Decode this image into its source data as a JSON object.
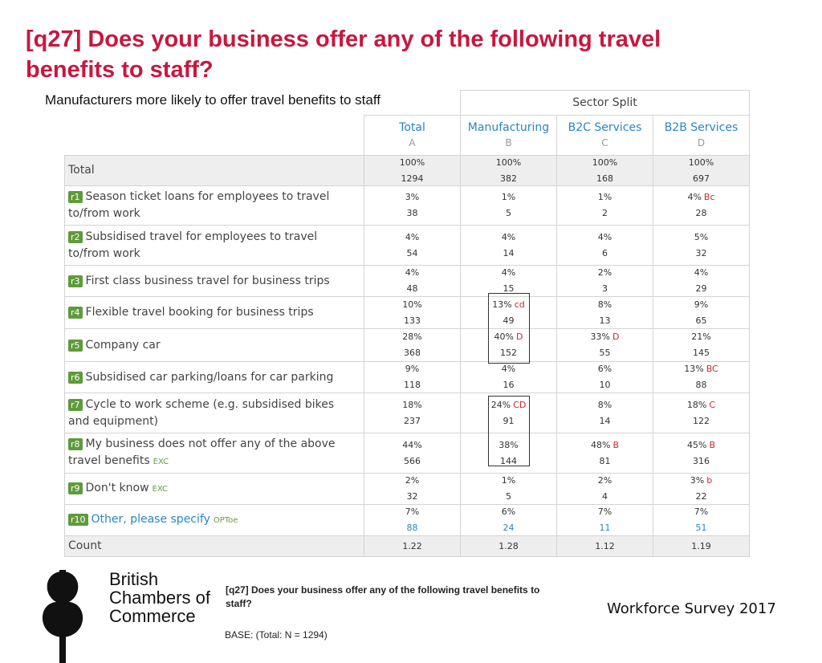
{
  "header": {
    "title": "[q27] Does your business offer any of the following travel benefits to staff?",
    "subtitle": "Manufacturers more likely to offer travel benefits to staff"
  },
  "table": {
    "group_header": "Sector Split",
    "columns": [
      {
        "name": "Total",
        "letter": "A"
      },
      {
        "name": "Manufacturing",
        "letter": "B"
      },
      {
        "name": "B2C Services",
        "letter": "C"
      },
      {
        "name": "B2B Services",
        "letter": "D"
      }
    ],
    "total_row": {
      "label": "Total",
      "cells": [
        {
          "pct": "100%",
          "count": "1294"
        },
        {
          "pct": "100%",
          "count": "382"
        },
        {
          "pct": "100%",
          "count": "168"
        },
        {
          "pct": "100%",
          "count": "697"
        }
      ]
    },
    "rows": [
      {
        "code": "r1",
        "label": "Season ticket loans for employees to travel to/from work",
        "cells": [
          {
            "pct": "3%",
            "count": "38"
          },
          {
            "pct": "1%",
            "count": "5"
          },
          {
            "pct": "1%",
            "count": "2"
          },
          {
            "pct": "4%",
            "sig": "Bc",
            "count": "28"
          }
        ]
      },
      {
        "code": "r2",
        "label": "Subsidised travel for employees to travel to/from work",
        "cells": [
          {
            "pct": "4%",
            "count": "54"
          },
          {
            "pct": "4%",
            "count": "14"
          },
          {
            "pct": "4%",
            "count": "6"
          },
          {
            "pct": "5%",
            "count": "32"
          }
        ]
      },
      {
        "code": "r3",
        "label": "First class business travel for business trips",
        "cells": [
          {
            "pct": "4%",
            "count": "48"
          },
          {
            "pct": "4%",
            "count": "15"
          },
          {
            "pct": "2%",
            "count": "3"
          },
          {
            "pct": "4%",
            "count": "29"
          }
        ]
      },
      {
        "code": "r4",
        "label": "Flexible travel booking for business trips",
        "cells": [
          {
            "pct": "10%",
            "count": "133"
          },
          {
            "pct": "13%",
            "sig": "cd",
            "count": "49"
          },
          {
            "pct": "8%",
            "count": "13"
          },
          {
            "pct": "9%",
            "count": "65"
          }
        ]
      },
      {
        "code": "r5",
        "label": "Company car",
        "cells": [
          {
            "pct": "28%",
            "count": "368"
          },
          {
            "pct": "40%",
            "sig": "D",
            "count": "152"
          },
          {
            "pct": "33%",
            "sig": "D",
            "count": "55"
          },
          {
            "pct": "21%",
            "count": "145"
          }
        ]
      },
      {
        "code": "r6",
        "label": "Subsidised car parking/loans for car parking",
        "cells": [
          {
            "pct": "9%",
            "count": "118"
          },
          {
            "pct": "4%",
            "count": "16"
          },
          {
            "pct": "6%",
            "count": "10"
          },
          {
            "pct": "13%",
            "sig": "BC",
            "count": "88"
          }
        ]
      },
      {
        "code": "r7",
        "label": "Cycle to work scheme (e.g. subsidised bikes and equipment)",
        "cells": [
          {
            "pct": "18%",
            "count": "237"
          },
          {
            "pct": "24%",
            "sig": "CD",
            "count": "91"
          },
          {
            "pct": "8%",
            "count": "14"
          },
          {
            "pct": "18%",
            "sig": "C",
            "count": "122"
          }
        ]
      },
      {
        "code": "r8",
        "label": "My business does not offer any of the above travel benefits",
        "tag": "EXC",
        "cells": [
          {
            "pct": "44%",
            "count": "566"
          },
          {
            "pct": "38%",
            "count": "144"
          },
          {
            "pct": "48%",
            "sig": "B",
            "count": "81"
          },
          {
            "pct": "45%",
            "sig": "B",
            "count": "316"
          }
        ]
      },
      {
        "code": "r9",
        "label": "Don't know",
        "tag": "EXC",
        "cells": [
          {
            "pct": "2%",
            "count": "32"
          },
          {
            "pct": "1%",
            "count": "5"
          },
          {
            "pct": "2%",
            "count": "4"
          },
          {
            "pct": "3%",
            "sig": "b",
            "count": "22"
          }
        ]
      },
      {
        "code": "r10",
        "label": "Other, please specify",
        "tag": "OPToe",
        "cells": [
          {
            "pct": "7%",
            "count": "88"
          },
          {
            "pct": "6%",
            "count": "24"
          },
          {
            "pct": "7%",
            "count": "11"
          },
          {
            "pct": "7%",
            "count": "51"
          }
        ]
      }
    ],
    "count_row": {
      "label": "Count",
      "values": [
        "1.22",
        "1.28",
        "1.12",
        "1.19"
      ]
    }
  },
  "footer": {
    "logo_text": [
      "British",
      "Chambers of",
      "Commerce"
    ],
    "question": "[q27] Does your business offer any of the following travel benefits to staff?",
    "base": "BASE: (Total: N = 1294)",
    "survey": "Workforce Survey 2017"
  }
}
